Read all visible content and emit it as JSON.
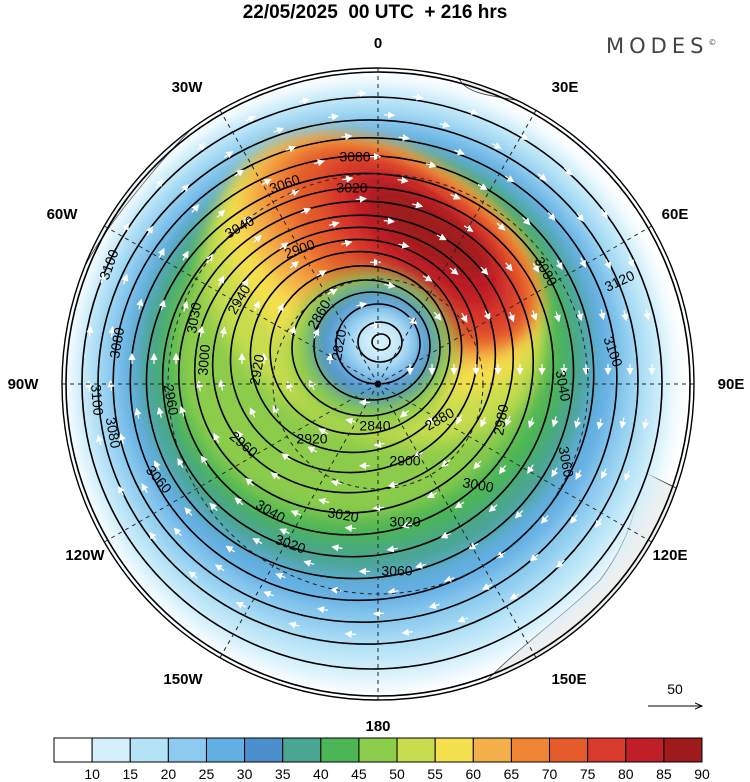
{
  "title": "22/05/2025  00 UTC  + 216 hrs",
  "brand": "MODES",
  "brand_mark": "©",
  "map": {
    "projection": "north-polar-stereographic",
    "longitude_labels": [
      "0",
      "30E",
      "60E",
      "90E",
      "120E",
      "150E",
      "180",
      "150W",
      "120W",
      "90W",
      "60W",
      "30W"
    ],
    "contour_labels": [
      "3120",
      "3100",
      "3100",
      "3100",
      "3080",
      "3080",
      "3080",
      "3080",
      "3060",
      "3060",
      "3060",
      "3060",
      "3040",
      "3040",
      "3040",
      "3030",
      "3020",
      "3020",
      "3020",
      "3020",
      "3000",
      "3000",
      "2980",
      "2960",
      "2960",
      "2940",
      "2920",
      "2920",
      "2900",
      "2900",
      "2880",
      "2860",
      "2840",
      "2820"
    ],
    "vector_reference": "50"
  },
  "colorbar": {
    "tick_labels": [
      "10",
      "15",
      "20",
      "25",
      "30",
      "35",
      "40",
      "45",
      "50",
      "55",
      "60",
      "65",
      "70",
      "75",
      "80",
      "85",
      "90"
    ],
    "colors": [
      "#ffffff",
      "#d4f0fb",
      "#b4e2f6",
      "#8ccbef",
      "#63aee3",
      "#4b8fcf",
      "#4aa592",
      "#4cb555",
      "#8ccc4b",
      "#c8dd4e",
      "#f5e04d",
      "#f4b04a",
      "#ef8434",
      "#e45a2a",
      "#d83a2c",
      "#c01f27",
      "#9e1a1d"
    ]
  }
}
